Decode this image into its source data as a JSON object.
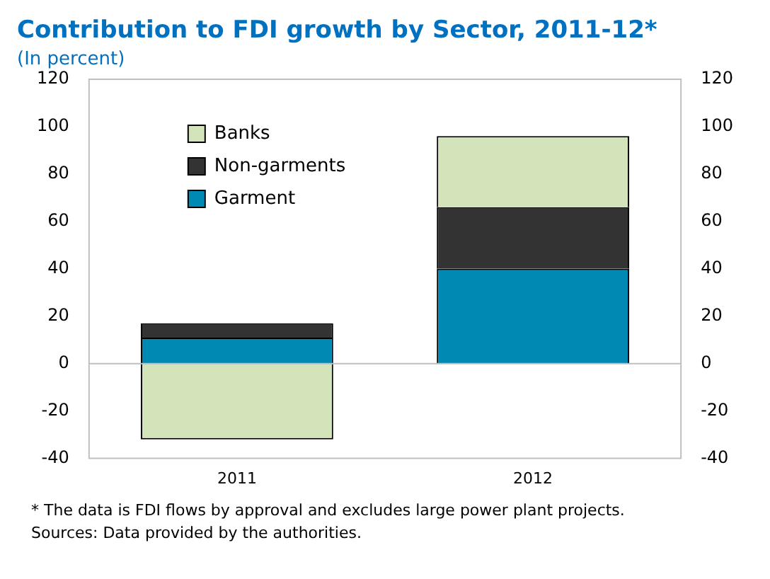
{
  "chart_data": {
    "type": "bar",
    "title": "Contribution to FDI growth by Sector, 2011-12*",
    "subtitle": "(In percent)",
    "categories": [
      "2011",
      "2012"
    ],
    "stacked": true,
    "series": [
      {
        "name": "Garment",
        "color": "#0089b3",
        "values": [
          11,
          40
        ]
      },
      {
        "name": "Non-garments",
        "color": "#333333",
        "values": [
          6,
          26
        ]
      },
      {
        "name": "Banks",
        "color": "#d3e4bb",
        "values": [
          -32,
          30
        ]
      }
    ],
    "ylim": [
      -40,
      120
    ],
    "yticks": [
      -40,
      -20,
      0,
      20,
      40,
      60,
      80,
      100,
      120
    ],
    "y2lim": [
      -40,
      120
    ],
    "y2ticks": [
      -40,
      -20,
      0,
      20,
      40,
      60,
      80,
      100,
      120
    ],
    "ref_lines": [
      {
        "axis": "y",
        "value": 0,
        "color": "#bfbfbf"
      }
    ],
    "legend": "top left",
    "annotations": [
      "* The data is FDI flows by approval and excludes large power plant projects.",
      "Sources: Data provided by the authorities."
    ]
  }
}
